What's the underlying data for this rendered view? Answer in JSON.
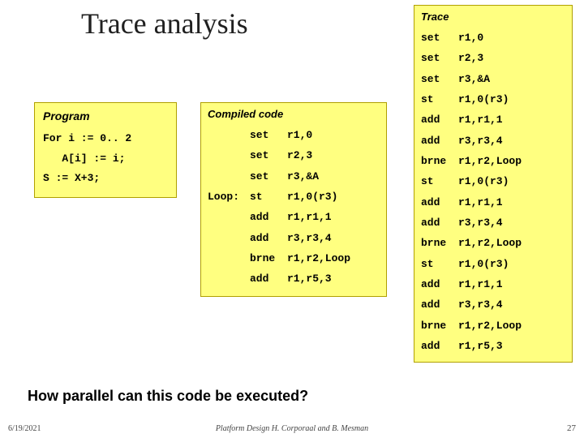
{
  "colors": {
    "box_bg": "#ffff80",
    "box_border": "#b0a000",
    "slide_bg": "#ffffff",
    "title_color": "#202020"
  },
  "title": "Trace analysis",
  "program": {
    "header": "Program",
    "line1": "For i := 0.. 2",
    "line2": "   A[i] := i;",
    "line3": "S := X+3;"
  },
  "compiled": {
    "header": "Compiled code",
    "rows": [
      {
        "label": "",
        "op": "set",
        "args": "r1,0"
      },
      {
        "label": "",
        "op": "set",
        "args": "r2,3"
      },
      {
        "label": "",
        "op": "set",
        "args": "r3,&A"
      },
      {
        "label": "Loop:",
        "op": "st",
        "args": "r1,0(r3)"
      },
      {
        "label": "",
        "op": "add",
        "args": "r1,r1,1"
      },
      {
        "label": "",
        "op": "add",
        "args": "r3,r3,4"
      },
      {
        "label": "",
        "op": "brne",
        "args": "r1,r2,Loop"
      },
      {
        "label": "",
        "op": "add",
        "args": "r1,r5,3"
      }
    ]
  },
  "trace": {
    "header": "Trace",
    "rows": [
      {
        "op": "set",
        "args": "r1,0"
      },
      {
        "op": "set",
        "args": "r2,3"
      },
      {
        "op": "set",
        "args": "r3,&A"
      },
      {
        "op": "st",
        "args": "r1,0(r3)"
      },
      {
        "op": "add",
        "args": "r1,r1,1"
      },
      {
        "op": "add",
        "args": "r3,r3,4"
      },
      {
        "op": "brne",
        "args": "r1,r2,Loop"
      },
      {
        "op": "st",
        "args": "r1,0(r3)"
      },
      {
        "op": "add",
        "args": "r1,r1,1"
      },
      {
        "op": "add",
        "args": "r3,r3,4"
      },
      {
        "op": "brne",
        "args": "r1,r2,Loop"
      },
      {
        "op": "st",
        "args": "r1,0(r3)"
      },
      {
        "op": "add",
        "args": "r1,r1,1"
      },
      {
        "op": "add",
        "args": "r3,r3,4"
      },
      {
        "op": "brne",
        "args": "r1,r2,Loop"
      },
      {
        "op": "add",
        "args": "r1,r5,3"
      }
    ]
  },
  "question": "How parallel can this code be executed?",
  "footer": {
    "date": "6/19/2021",
    "center": "Platform Design    H. Corporaal and B. Mesman",
    "page": "27"
  }
}
